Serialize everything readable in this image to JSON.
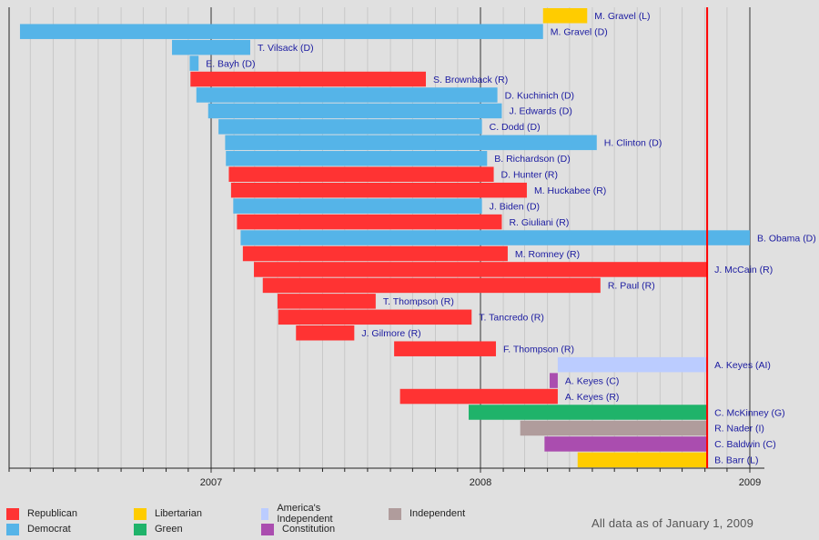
{
  "chart_data": {
    "type": "gantt",
    "title": "",
    "x_axis": {
      "ticks": [
        "2007",
        "2008",
        "2009"
      ],
      "range": [
        "2006-04-01",
        "2009-01-20"
      ],
      "minor_grid": "monthly"
    },
    "reference_line": {
      "date": "2008-11-04",
      "color": "#ff0000"
    },
    "parties": {
      "R": {
        "name": "Republican",
        "color": "#ff3333"
      },
      "D": {
        "name": "Democrat",
        "color": "#55b4e8"
      },
      "L": {
        "name": "Libertarian",
        "color": "#ffcc00"
      },
      "G": {
        "name": "Green",
        "color": "#1fb36a"
      },
      "AI": {
        "name": "America's Independent",
        "color": "#bbccff"
      },
      "C": {
        "name": "Constitution",
        "color": "#aa4daf"
      },
      "I": {
        "name": "Independent",
        "color": "#b09c9c"
      }
    },
    "legend_order": [
      "R",
      "D",
      "L",
      "G",
      "AI",
      "C",
      "I"
    ],
    "candidates": [
      {
        "label": "M. Gravel (L)",
        "party": "L",
        "start": "2008-03-26",
        "end": "2008-05-25"
      },
      {
        "label": "M. Gravel (D)",
        "party": "D",
        "start": "2006-04-17",
        "end": "2008-03-26"
      },
      {
        "label": "T. Vilsack (D)",
        "party": "D",
        "start": "2006-11-09",
        "end": "2007-02-23"
      },
      {
        "label": "E. Bayh (D)",
        "party": "D",
        "start": "2006-12-03",
        "end": "2006-12-15"
      },
      {
        "label": "S. Brownback (R)",
        "party": "R",
        "start": "2006-12-04",
        "end": "2007-10-19"
      },
      {
        "label": "D. Kuchinich (D)",
        "party": "D",
        "start": "2006-12-12",
        "end": "2008-01-24"
      },
      {
        "label": "J. Edwards (D)",
        "party": "D",
        "start": "2006-12-28",
        "end": "2008-01-30"
      },
      {
        "label": "C. Dodd (D)",
        "party": "D",
        "start": "2007-01-11",
        "end": "2008-01-03"
      },
      {
        "label": "H. Clinton (D)",
        "party": "D",
        "start": "2007-01-20",
        "end": "2008-06-07"
      },
      {
        "label": "B. Richardson (D)",
        "party": "D",
        "start": "2007-01-21",
        "end": "2008-01-10"
      },
      {
        "label": "D. Hunter (R)",
        "party": "R",
        "start": "2007-01-25",
        "end": "2008-01-19"
      },
      {
        "label": "M. Huckabee (R)",
        "party": "R",
        "start": "2007-01-28",
        "end": "2008-03-04"
      },
      {
        "label": "J. Biden (D)",
        "party": "D",
        "start": "2007-01-31",
        "end": "2008-01-03"
      },
      {
        "label": "R. Giuliani (R)",
        "party": "R",
        "start": "2007-02-05",
        "end": "2008-01-30"
      },
      {
        "label": "B. Obama (D)",
        "party": "D",
        "start": "2007-02-10",
        "end": "2009-01-01"
      },
      {
        "label": "M. Romney (R)",
        "party": "R",
        "start": "2007-02-13",
        "end": "2008-02-07"
      },
      {
        "label": "J. McCain (R)",
        "party": "R",
        "start": "2007-02-28",
        "end": "2008-11-04"
      },
      {
        "label": "R. Paul (R)",
        "party": "R",
        "start": "2007-03-12",
        "end": "2008-06-12"
      },
      {
        "label": "T. Thompson (R)",
        "party": "R",
        "start": "2007-04-01",
        "end": "2007-08-12"
      },
      {
        "label": "T. Tancredo (R)",
        "party": "R",
        "start": "2007-04-02",
        "end": "2007-12-20"
      },
      {
        "label": "J. Gilmore (R)",
        "party": "R",
        "start": "2007-04-26",
        "end": "2007-07-14"
      },
      {
        "label": "F. Thompson (R)",
        "party": "R",
        "start": "2007-09-06",
        "end": "2008-01-22"
      },
      {
        "label": "A. Keyes (AI)",
        "party": "AI",
        "start": "2008-04-15",
        "end": "2008-11-04"
      },
      {
        "label": "A. Keyes (C)",
        "party": "C",
        "start": "2008-04-04",
        "end": "2008-04-15"
      },
      {
        "label": "A. Keyes (R)",
        "party": "R",
        "start": "2007-09-14",
        "end": "2008-04-15"
      },
      {
        "label": "C. McKinney (G)",
        "party": "G",
        "start": "2007-12-16",
        "end": "2008-11-04"
      },
      {
        "label": "R. Nader (I)",
        "party": "I",
        "start": "2008-02-24",
        "end": "2008-11-04"
      },
      {
        "label": "C. Baldwin (C)",
        "party": "C",
        "start": "2008-03-28",
        "end": "2008-11-04"
      },
      {
        "label": "B. Barr (L)",
        "party": "L",
        "start": "2008-05-12",
        "end": "2008-11-04"
      }
    ],
    "note": "All data as of January 1, 2009"
  }
}
